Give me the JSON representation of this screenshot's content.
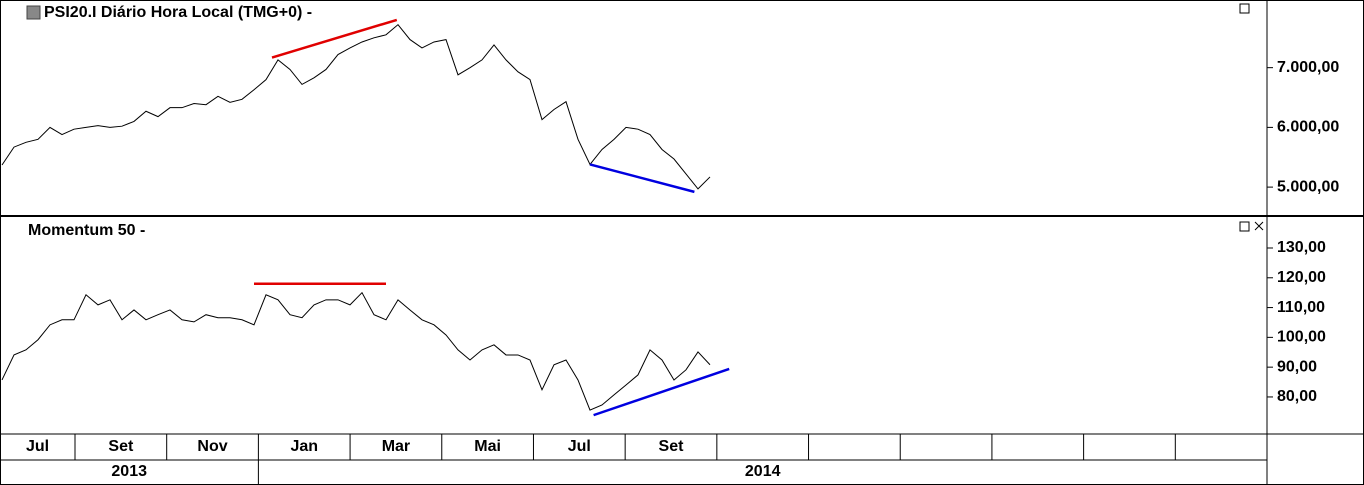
{
  "chart_data": [
    {
      "type": "line",
      "title": "PSI20.I Diário Hora Local (TMG+0)  -",
      "series": [
        {
          "color": "#000000",
          "values": [
            5370,
            5670,
            5750,
            5800,
            6000,
            5880,
            5970,
            6000,
            6030,
            6000,
            6020,
            6100,
            6270,
            6180,
            6330,
            6330,
            6400,
            6380,
            6520,
            6420,
            6470,
            6630,
            6800,
            7130,
            6970,
            6720,
            6830,
            6970,
            7220,
            7330,
            7430,
            7500,
            7550,
            7720,
            7470,
            7330,
            7430,
            7470,
            6880,
            7000,
            7130,
            7380,
            7130,
            6930,
            6800,
            6130,
            6300,
            6430,
            5800,
            5380,
            5630,
            5800,
            6000,
            5970,
            5880,
            5630,
            5470,
            5220,
            4970,
            5170
          ]
        }
      ],
      "ylim": [
        4533,
        8133
      ],
      "yticks": [
        {
          "value": 5000,
          "label": "5.000,00"
        },
        {
          "value": 6000,
          "label": "6.000,00"
        },
        {
          "value": 7000,
          "label": "7.000,00"
        }
      ],
      "trendlines": [
        {
          "color": "#e00000",
          "x": [
            22.5,
            32.9
          ],
          "values": [
            7170,
            7800
          ]
        },
        {
          "color": "#0000e0",
          "x": [
            49,
            57.7
          ],
          "values": [
            5380,
            4920
          ]
        }
      ]
    },
    {
      "type": "line",
      "title": "Momentum 50 -",
      "series": [
        {
          "color": "#000000",
          "values": [
            85.7,
            94.1,
            95.8,
            99.2,
            104.2,
            105.9,
            105.9,
            114.3,
            110.9,
            112.6,
            105.9,
            109.2,
            105.9,
            107.6,
            109.2,
            105.9,
            105.2,
            107.6,
            106.6,
            106.6,
            105.9,
            104.2,
            114.3,
            112.6,
            107.6,
            106.6,
            110.9,
            112.6,
            112.6,
            110.9,
            115.0,
            107.6,
            105.9,
            112.6,
            109.2,
            105.9,
            104.2,
            100.8,
            95.8,
            92.4,
            95.8,
            97.5,
            94.1,
            94.1,
            92.4,
            82.4,
            90.8,
            92.4,
            85.7,
            75.6,
            77.3,
            80.7,
            84.0,
            87.4,
            95.8,
            92.4,
            85.7,
            89.1,
            95.1,
            90.8
          ]
        }
      ],
      "ylim": [
        67.9,
        140.4
      ],
      "yticks": [
        {
          "value": 80,
          "label": "80,00"
        },
        {
          "value": 90,
          "label": "90,00"
        },
        {
          "value": 100,
          "label": "100,00"
        },
        {
          "value": 110,
          "label": "110,00"
        },
        {
          "value": 120,
          "label": "120,00"
        },
        {
          "value": 130,
          "label": "130,00"
        }
      ],
      "trendlines": [
        {
          "color": "#e00000",
          "x": [
            21,
            32
          ],
          "values": [
            118,
            118
          ]
        },
        {
          "color": "#0000e0",
          "x": [
            49.3,
            60.6
          ],
          "values": [
            73.9,
            89.4
          ]
        }
      ]
    }
  ],
  "x_axis": {
    "categories": [
      "Jul",
      "Set",
      "Nov",
      "Jan",
      "Mar",
      "Mai",
      "Jul",
      "Set",
      null,
      null,
      null,
      null,
      null,
      null
    ],
    "years": [
      "2013",
      "2014"
    ]
  }
}
